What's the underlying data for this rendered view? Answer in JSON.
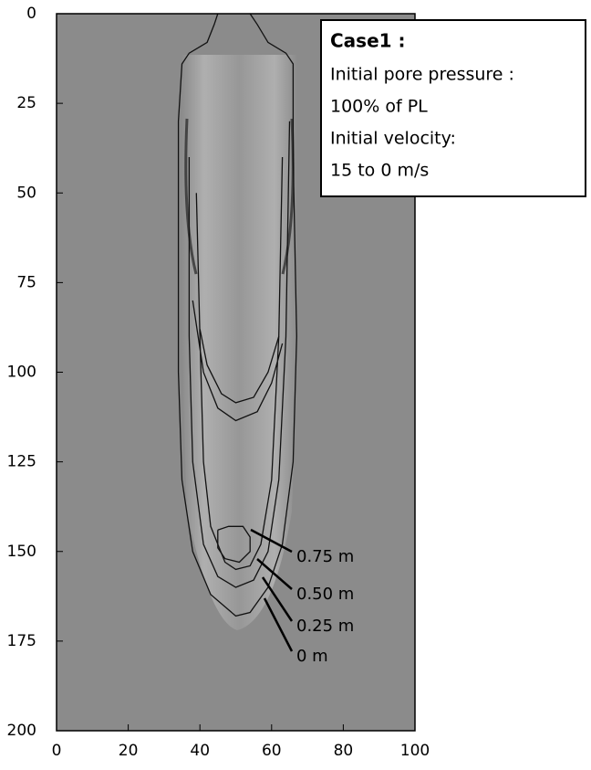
{
  "chart_data": {
    "type": "contour",
    "xlim": [
      0,
      100
    ],
    "ylim": [
      0,
      200
    ],
    "y_inverted": true,
    "xticks": [
      0,
      20,
      40,
      60,
      80,
      100
    ],
    "yticks": [
      0,
      25,
      50,
      75,
      100,
      125,
      150,
      175,
      200
    ],
    "annotation": {
      "title": "Case1 :",
      "lines": [
        "Initial pore pressure :",
        "100% of PL",
        "Initial velocity:",
        "15 to 0 m/s"
      ]
    },
    "color": "#111111",
    "series": [
      {
        "name": "0.75 m",
        "x": [
          45,
          48,
          52,
          54,
          54,
          51,
          47,
          45,
          45,
          null,
          40,
          42,
          46,
          50,
          55,
          59,
          62
        ],
        "y": [
          144,
          143,
          143,
          146,
          150,
          153,
          152,
          149,
          144,
          null,
          88,
          98,
          106,
          108.5,
          107,
          100,
          90
        ]
      },
      {
        "name": "0.50 m",
        "x": [
          39,
          40,
          41,
          43,
          47,
          50,
          54,
          57,
          60,
          62,
          63,
          null,
          38,
          41,
          45,
          50,
          56,
          60,
          63
        ],
        "y": [
          50,
          90,
          125,
          143,
          153,
          155,
          154,
          148,
          130,
          90,
          40,
          null,
          80,
          100,
          110,
          113.5,
          111,
          103,
          92
        ]
      },
      {
        "name": "0.25 m",
        "x": [
          37,
          37,
          38,
          41,
          45,
          50,
          55,
          59,
          62,
          64,
          65
        ],
        "y": [
          40,
          90,
          125,
          148,
          157,
          160,
          158,
          150,
          130,
          90,
          30
        ]
      },
      {
        "name": "0 m",
        "x": [
          45,
          44,
          42,
          37,
          35,
          34,
          34,
          34,
          35,
          38,
          43,
          50,
          54,
          59,
          63,
          66,
          67,
          66,
          66,
          64,
          59,
          56,
          54
        ],
        "y": [
          0,
          3,
          8,
          11,
          14,
          30,
          60,
          100,
          130,
          150,
          162,
          168,
          167,
          160,
          148,
          125,
          90,
          40,
          14,
          11,
          8,
          3,
          0
        ]
      }
    ]
  }
}
